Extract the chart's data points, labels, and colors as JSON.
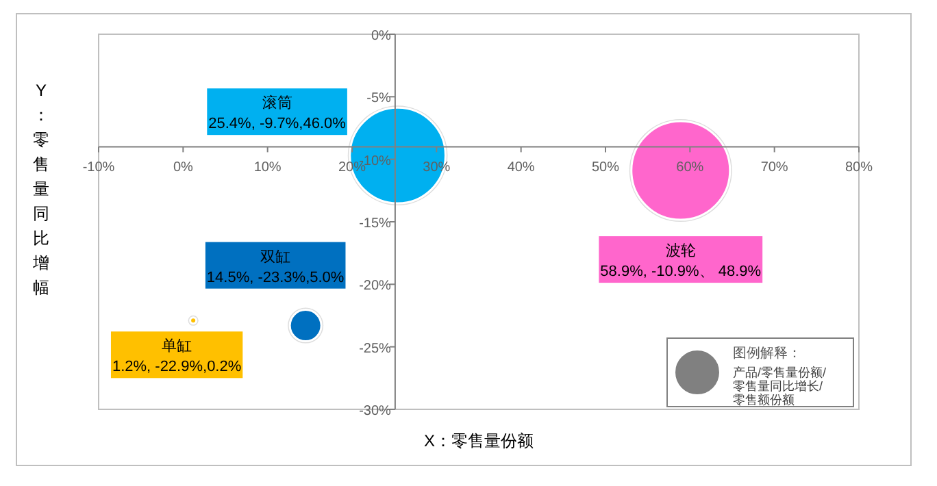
{
  "chart_data": {
    "type": "bubble",
    "xlabel": "X：零售量份额",
    "ylabel": "Y：零售量同比增幅",
    "xlim": [
      -10,
      80
    ],
    "ylim": [
      -30,
      0
    ],
    "xticks": [
      {
        "value": -10,
        "label": "-10%"
      },
      {
        "value": 0,
        "label": "0%"
      },
      {
        "value": 10,
        "label": "10%"
      },
      {
        "value": 20,
        "label": "20%"
      },
      {
        "value": 30,
        "label": "30%"
      },
      {
        "value": 40,
        "label": "40%"
      },
      {
        "value": 50,
        "label": "50%"
      },
      {
        "value": 60,
        "label": "60%"
      },
      {
        "value": 70,
        "label": "70%"
      },
      {
        "value": 80,
        "label": "80%"
      }
    ],
    "yticks": [
      {
        "value": 0,
        "label": "0%"
      },
      {
        "value": -5,
        "label": "-5%"
      },
      {
        "value": -10,
        "label": "-10%"
      },
      {
        "value": -15,
        "label": "-15%"
      },
      {
        "value": -20,
        "label": "-20%"
      },
      {
        "value": -25,
        "label": "-25%"
      },
      {
        "value": -30,
        "label": "-30%"
      }
    ],
    "series": [
      {
        "name": "滚筒",
        "color": "#00b0f0",
        "x": [
          25.4
        ],
        "values": [
          -9.7
        ],
        "sizes": [
          0.941
        ],
        "value_labels": [
          "25.4%, -9.7%,46.0%"
        ]
      },
      {
        "name": "波轮",
        "color": "#ff66cc",
        "x": [
          58.9
        ],
        "values": [
          -10.9
        ],
        "sizes": [
          1
        ],
        "value_labels": [
          "58.9%, -10.9%、 48.9%"
        ]
      },
      {
        "name": "双缸",
        "color": "#0070c0",
        "x": [
          14.5
        ],
        "values": [
          -23.3
        ],
        "sizes": [
          0.102
        ],
        "value_labels": [
          "14.5%, -23.3%,5.0%"
        ]
      },
      {
        "name": "单缸",
        "color": "#ffc000",
        "x": [
          1.2
        ],
        "values": [
          -22.9
        ],
        "sizes": [
          0.004
        ],
        "value_labels": [
          "1.2%, -22.9%,0.2%"
        ]
      }
    ],
    "annotations": [
      "图例解释：",
      "产品/零售量份额/零售量同比增长/零售额份额"
    ]
  }
}
